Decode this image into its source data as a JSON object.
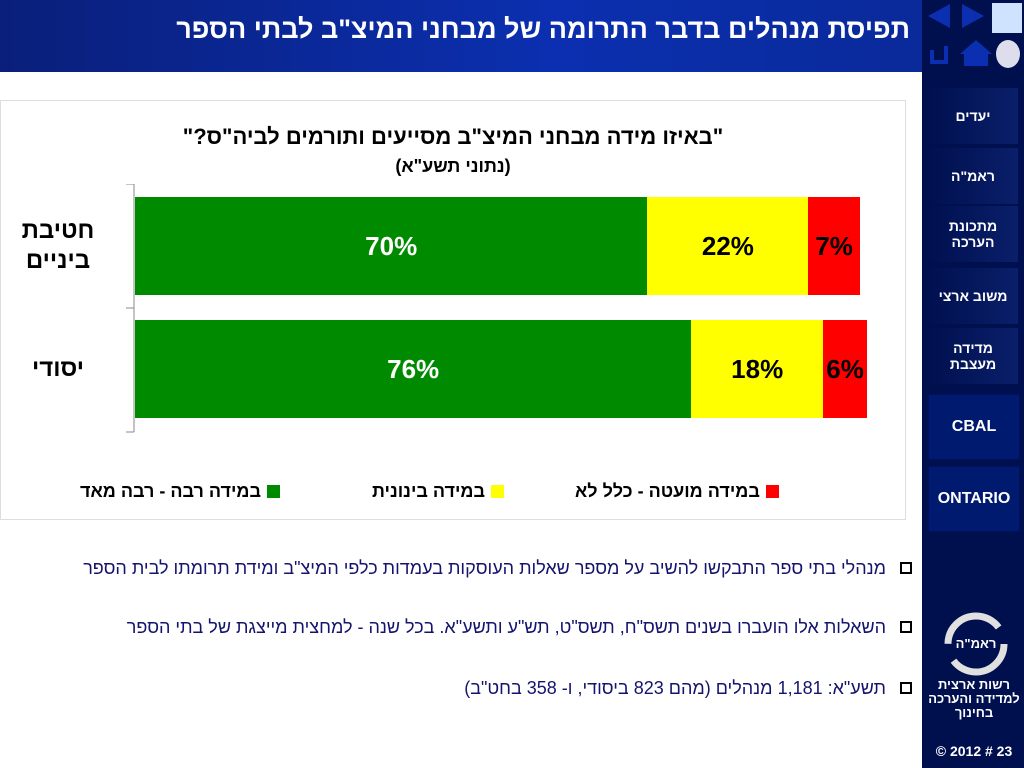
{
  "header": {
    "title": "תפיסת מנהלים בדבר התרומה של מבחני המיצ\"ב לבתי הספר"
  },
  "chart_data": {
    "type": "bar",
    "orientation": "horizontal",
    "stacked": true,
    "title": "\"באיזו מידה מבחני המיצ\"ב מסייעים ותורמים לביה\"ס?\"",
    "subtitle": "(נתוני תשע\"א)",
    "categories": [
      "חטיבת ביניים",
      "יסודי"
    ],
    "series": [
      {
        "name": "במידה רבה - רבה מאד",
        "color": "#008a00",
        "label_color": "#ffffff",
        "values": [
          70,
          76
        ],
        "value_labels": [
          "70%",
          "76%"
        ]
      },
      {
        "name": "במידה בינונית",
        "color": "#ffff00",
        "label_color": "#000000",
        "values": [
          22,
          18
        ],
        "value_labels": [
          "22%",
          "18%"
        ]
      },
      {
        "name": "במידה מועטה - כלל לא",
        "color": "#ff0000",
        "label_color": "#000000",
        "values": [
          7,
          6
        ],
        "value_labels": [
          "7%",
          "6%"
        ]
      }
    ],
    "xlim": [
      0,
      100
    ]
  },
  "bullets": [
    "מנהלי בתי ספר התבקשו להשיב על מספר שאלות העוסקות בעמדות כלפי המיצ\"ב ומידת תרומתו לבית הספר",
    "השאלות אלו הועברו בשנים תשס\"ח, תשס\"ט, תש\"ע ותשע\"א. בכל שנה - למחצית מייצגת של בתי הספר",
    "תשע\"א: 1,181 מנהלים (מהם 823 ביסודי, ו- 358 בחט\"ב)"
  ],
  "sidebar": {
    "menu": [
      "יעדים",
      "ראמ\"ה",
      "מתכונת הערכה",
      "משוב ארצי",
      "מדידה מעצבת",
      "CBAL",
      "ONTARIO"
    ],
    "logo_label": "ראמ\"ה",
    "organization": "רשות ארצית למדידה והערכה בחינוך",
    "footer": "© 2012 # 23"
  }
}
